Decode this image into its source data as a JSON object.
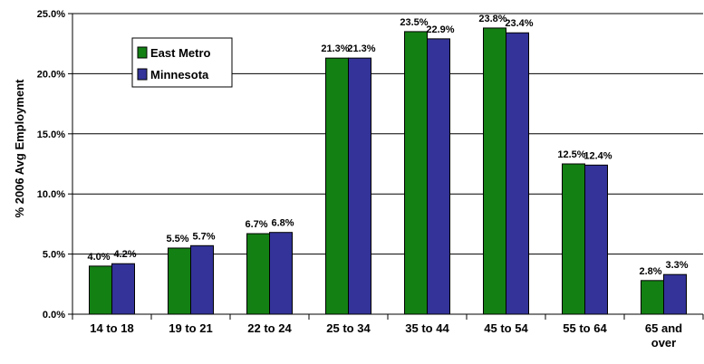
{
  "chart_data": {
    "type": "bar",
    "ylabel": "% 2006 Avg Employment",
    "xlabel": "",
    "ylim": [
      0,
      25
    ],
    "yticks": [
      "0.0%",
      "5.0%",
      "10.0%",
      "15.0%",
      "20.0%",
      "25.0%"
    ],
    "grid": "horizontal",
    "legend_position": "top-left",
    "categories": [
      [
        "14 to 18"
      ],
      [
        "19 to 21"
      ],
      [
        "22 to 24"
      ],
      [
        "25 to 34"
      ],
      [
        "35 to 44"
      ],
      [
        "45 to 54"
      ],
      [
        "55 to 64"
      ],
      [
        "65 and",
        "over"
      ]
    ],
    "series": [
      {
        "name": "East Metro",
        "color": "#138013",
        "values": [
          4.0,
          5.5,
          6.7,
          21.3,
          23.5,
          23.8,
          12.5,
          2.8
        ],
        "labels": [
          "4.0%",
          "5.5%",
          "6.7%",
          "21.3%",
          "23.5%",
          "23.8%",
          "12.5%",
          "2.8%"
        ]
      },
      {
        "name": "Minnesota",
        "color": "#333399",
        "values": [
          4.2,
          5.7,
          6.8,
          21.3,
          22.9,
          23.4,
          12.4,
          3.3
        ],
        "labels": [
          "4.2%",
          "5.7%",
          "6.8%",
          "21.3%",
          "22.9%",
          "23.4%",
          "12.4%",
          "3.3%"
        ]
      }
    ]
  }
}
